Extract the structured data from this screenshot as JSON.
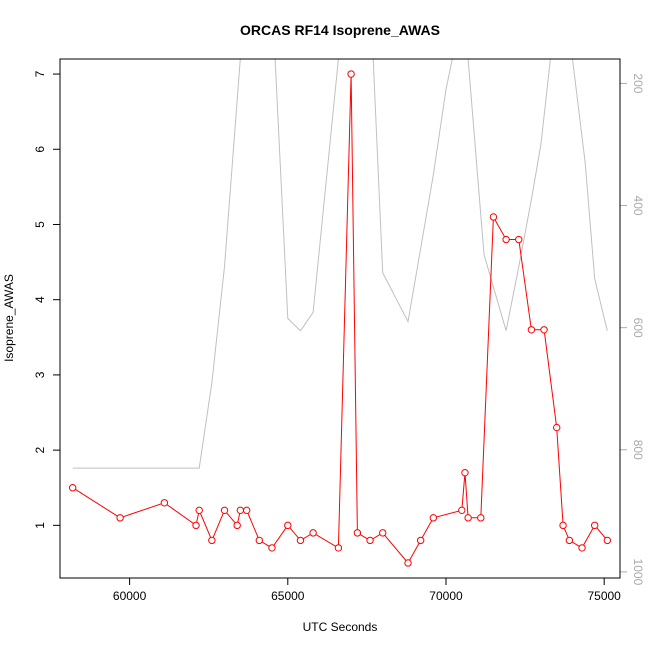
{
  "chart_data": {
    "type": "line",
    "title": "ORCAS RF14 Isoprene_AWAS",
    "xlabel": "UTC Seconds",
    "ylabel": "Isoprene_AWAS",
    "xlim": [
      57800,
      75500
    ],
    "ylim": [
      0.3,
      7.2
    ],
    "y2lim": [
      1010,
      160
    ],
    "x_ticks": [
      60000,
      65000,
      70000,
      75000
    ],
    "y_ticks": [
      1,
      2,
      3,
      4,
      5,
      6,
      7
    ],
    "y2_ticks": [
      200,
      400,
      600,
      800,
      1000
    ],
    "grid": false,
    "series": [
      {
        "axis": "left",
        "color": "#ff0000",
        "marker": "open-circle",
        "x": [
          58200,
          59700,
          61100,
          62100,
          62200,
          62600,
          63000,
          63400,
          63500,
          63700,
          64100,
          64500,
          65000,
          65400,
          65800,
          66600,
          67000,
          67200,
          67600,
          68000,
          68800,
          69200,
          69600,
          70500,
          70600,
          70700,
          71100,
          71500,
          71900,
          72300,
          72700,
          73100,
          73500,
          73700,
          73900,
          74300,
          74700,
          75100
        ],
        "y": [
          1.5,
          1.1,
          1.3,
          1.0,
          1.2,
          0.8,
          1.2,
          1.0,
          1.2,
          1.2,
          0.8,
          0.7,
          1.0,
          0.8,
          0.9,
          0.7,
          7.0,
          0.9,
          0.8,
          0.9,
          0.5,
          0.8,
          1.1,
          1.2,
          1.7,
          1.1,
          1.1,
          5.1,
          4.8,
          4.8,
          3.6,
          3.6,
          2.3,
          1.0,
          0.8,
          0.7,
          1.0,
          0.8
        ]
      },
      {
        "axis": "right",
        "color": "#c0c0c0",
        "marker": "none",
        "x": [
          58200,
          62200,
          62600,
          63000,
          63500,
          63700,
          64100,
          64600,
          65000,
          65400,
          65800,
          66600,
          66900,
          67300,
          67700,
          68000,
          68800,
          69200,
          69600,
          70000,
          70200,
          70700,
          71200,
          71900,
          72300,
          72700,
          73000,
          73300,
          73600,
          73800,
          74000,
          74400,
          74700,
          75100
        ],
        "y": [
          830,
          830,
          690,
          500,
          160,
          160,
          160,
          160,
          585,
          605,
          575,
          160,
          160,
          160,
          160,
          510,
          590,
          470,
          350,
          210,
          160,
          160,
          480,
          605,
          500,
          390,
          300,
          160,
          160,
          160,
          160,
          330,
          520,
          605
        ]
      }
    ]
  }
}
